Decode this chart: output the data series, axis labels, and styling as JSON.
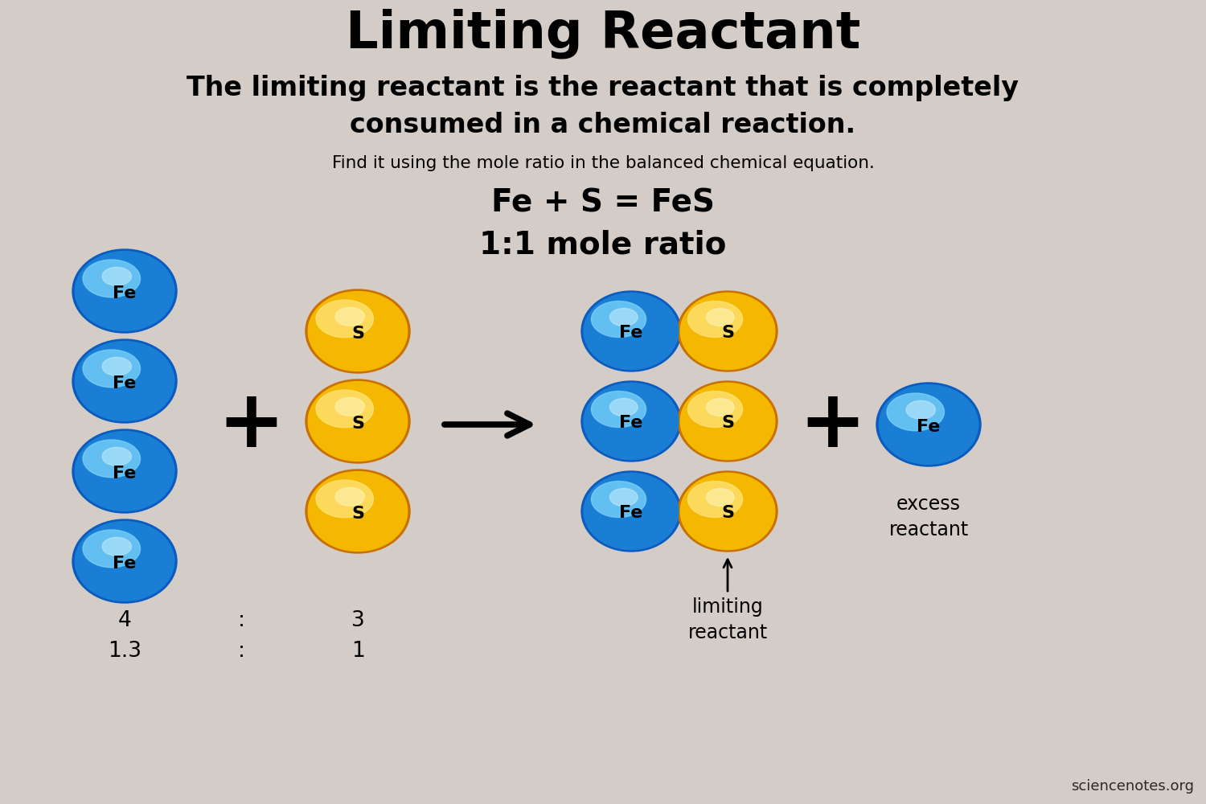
{
  "title": "Limiting Reactant",
  "subtitle_line1": "The limiting reactant is the reactant that is completely",
  "subtitle_line2": "consumed in a chemical reaction.",
  "subtitle2": "Find it using the mole ratio in the balanced chemical equation.",
  "equation": "Fe + S = FeS",
  "mole_ratio": "1:1 mole ratio",
  "background_color": "#d4cdc7",
  "label_fe": "Fe",
  "label_s": "S",
  "annotation_excess": "excess\nreactant",
  "annotation_limiting": "limiting\nreactant",
  "watermark": "sciencenotes.org",
  "fe_base_color": "#1a7fd4",
  "fe_highlight_color": "#7dd4fc",
  "fe_shadow_color": "#0a4fa0",
  "s_base_color": "#f5b800",
  "s_highlight_color": "#ffe066",
  "s_shadow_color": "#c87000"
}
